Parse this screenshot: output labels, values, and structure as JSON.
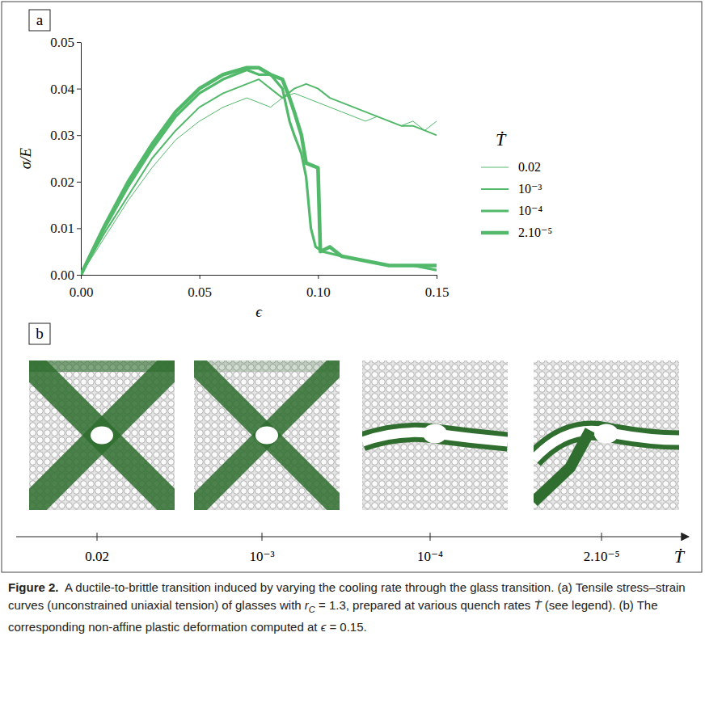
{
  "chart_data": {
    "type": "line",
    "panel": "a",
    "x_label": "ϵ",
    "y_label": "σ/E",
    "legend_title": "Ṫ",
    "legend": "right",
    "xlim": [
      0,
      0.15
    ],
    "xticks": [
      {
        "value": 0,
        "label": "0.00"
      },
      {
        "value": 0.05,
        "label": "0.05"
      },
      {
        "value": 0.1,
        "label": "0.10"
      },
      {
        "value": 0.15,
        "label": "0.15"
      }
    ],
    "ylim": [
      0,
      0.05
    ],
    "yticks": [
      {
        "value": 0,
        "label": "0.00"
      },
      {
        "value": 0.01,
        "label": "0.01"
      },
      {
        "value": 0.02,
        "label": "0.02"
      },
      {
        "value": 0.03,
        "label": "0.03"
      },
      {
        "value": 0.04,
        "label": "0.04"
      },
      {
        "value": 0.05,
        "label": "0.05"
      }
    ],
    "series": [
      {
        "name": "0.02",
        "color": "#52b96b",
        "x": [
          0,
          0.01,
          0.02,
          0.03,
          0.04,
          0.05,
          0.06,
          0.065,
          0.07,
          0.075,
          0.08,
          0.085,
          0.09,
          0.095,
          0.1,
          0.105,
          0.11,
          0.115,
          0.12,
          0.125,
          0.13,
          0.135,
          0.14,
          0.145,
          0.15
        ],
        "values": [
          0,
          0.008,
          0.016,
          0.023,
          0.029,
          0.033,
          0.036,
          0.037,
          0.038,
          0.037,
          0.036,
          0.038,
          0.039,
          0.038,
          0.037,
          0.036,
          0.035,
          0.034,
          0.033,
          0.034,
          0.033,
          0.032,
          0.033,
          0.031,
          0.033
        ]
      },
      {
        "name": "10⁻³",
        "color": "#52b96b",
        "x": [
          0,
          0.01,
          0.02,
          0.03,
          0.04,
          0.05,
          0.06,
          0.07,
          0.075,
          0.08,
          0.085,
          0.09,
          0.095,
          0.1,
          0.105,
          0.11,
          0.115,
          0.12,
          0.125,
          0.13,
          0.135,
          0.14,
          0.145,
          0.15
        ],
        "values": [
          0,
          0.009,
          0.017,
          0.025,
          0.031,
          0.036,
          0.039,
          0.041,
          0.042,
          0.04,
          0.038,
          0.04,
          0.041,
          0.04,
          0.038,
          0.037,
          0.036,
          0.035,
          0.034,
          0.033,
          0.032,
          0.032,
          0.031,
          0.03
        ]
      },
      {
        "name": "10⁻⁴",
        "color": "#52b96b",
        "x": [
          0,
          0.01,
          0.02,
          0.03,
          0.04,
          0.05,
          0.06,
          0.07,
          0.075,
          0.08,
          0.085,
          0.088,
          0.09,
          0.093,
          0.095,
          0.097,
          0.099,
          0.102,
          0.11,
          0.12,
          0.13,
          0.14,
          0.15
        ],
        "values": [
          0,
          0.01,
          0.019,
          0.027,
          0.034,
          0.039,
          0.042,
          0.044,
          0.043,
          0.043,
          0.04,
          0.033,
          0.03,
          0.026,
          0.021,
          0.01,
          0.006,
          0.005,
          0.004,
          0.003,
          0.002,
          0.002,
          0.001
        ]
      },
      {
        "name": "2.10⁻⁵",
        "color": "#52b96b",
        "x": [
          0,
          0.01,
          0.02,
          0.03,
          0.04,
          0.05,
          0.06,
          0.07,
          0.075,
          0.08,
          0.085,
          0.088,
          0.09,
          0.093,
          0.095,
          0.1,
          0.101,
          0.105,
          0.11,
          0.12,
          0.13,
          0.14,
          0.15
        ],
        "values": [
          0,
          0.0105,
          0.02,
          0.028,
          0.035,
          0.04,
          0.043,
          0.0445,
          0.0445,
          0.043,
          0.042,
          0.038,
          0.035,
          0.03,
          0.024,
          0.023,
          0.005,
          0.006,
          0.004,
          0.003,
          0.002,
          0.002,
          0.002
        ]
      }
    ]
  },
  "figure": {
    "panel_b": {
      "label": "b",
      "axis_label": "Ṫ",
      "axis_ticks": [
        "0.02",
        "10⁻³",
        "10⁻⁴",
        "2.10⁻⁵"
      ]
    },
    "caption": [
      {
        "text": "Figure 2.",
        "format": "bold"
      },
      {
        "text": "  A ductile-to-brittle transition induced by varying the cooling rate through the glass transition. (a) Tensile stress–strain curves (unconstrained uniaxial tension) of glasses with ",
        "format": "plain"
      },
      {
        "text": "r",
        "format": "italic"
      },
      {
        "text": "C",
        "format": "sub"
      },
      {
        "text": " = 1.3, prepared at various quench rates ",
        "format": "plain"
      },
      {
        "text": "Ṫ",
        "format": "italic"
      },
      {
        "text": " (see legend). (b) The corresponding non-affine plastic deformation computed at ",
        "format": "plain"
      },
      {
        "text": "ϵ",
        "format": "italic"
      },
      {
        "text": " = 0.15.",
        "format": "plain"
      }
    ]
  }
}
